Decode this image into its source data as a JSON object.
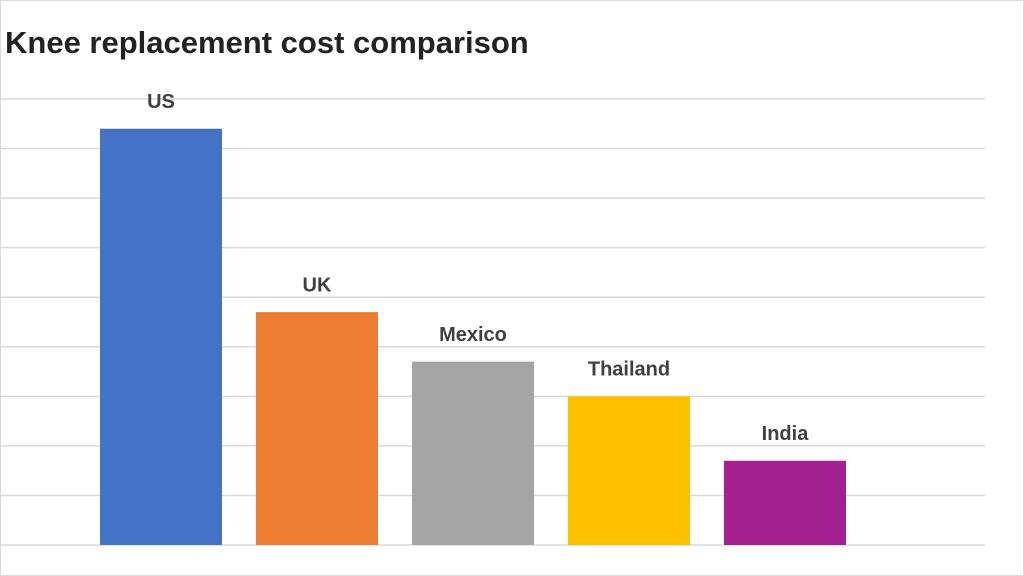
{
  "chart_data": {
    "type": "bar",
    "title": "Knee replacement cost comparison",
    "categories": [
      "US",
      "UK",
      "Mexico",
      "Thailand",
      "India"
    ],
    "values": [
      8.4,
      4.7,
      3.7,
      3.0,
      1.7
    ],
    "colors": [
      "#4472c4",
      "#ed7d31",
      "#a5a5a5",
      "#ffc000",
      "#a5208f"
    ],
    "ylim": [
      0,
      9
    ],
    "yticks": [
      0,
      1,
      2,
      3,
      4,
      5,
      6,
      7,
      8,
      9
    ],
    "grid": true
  }
}
